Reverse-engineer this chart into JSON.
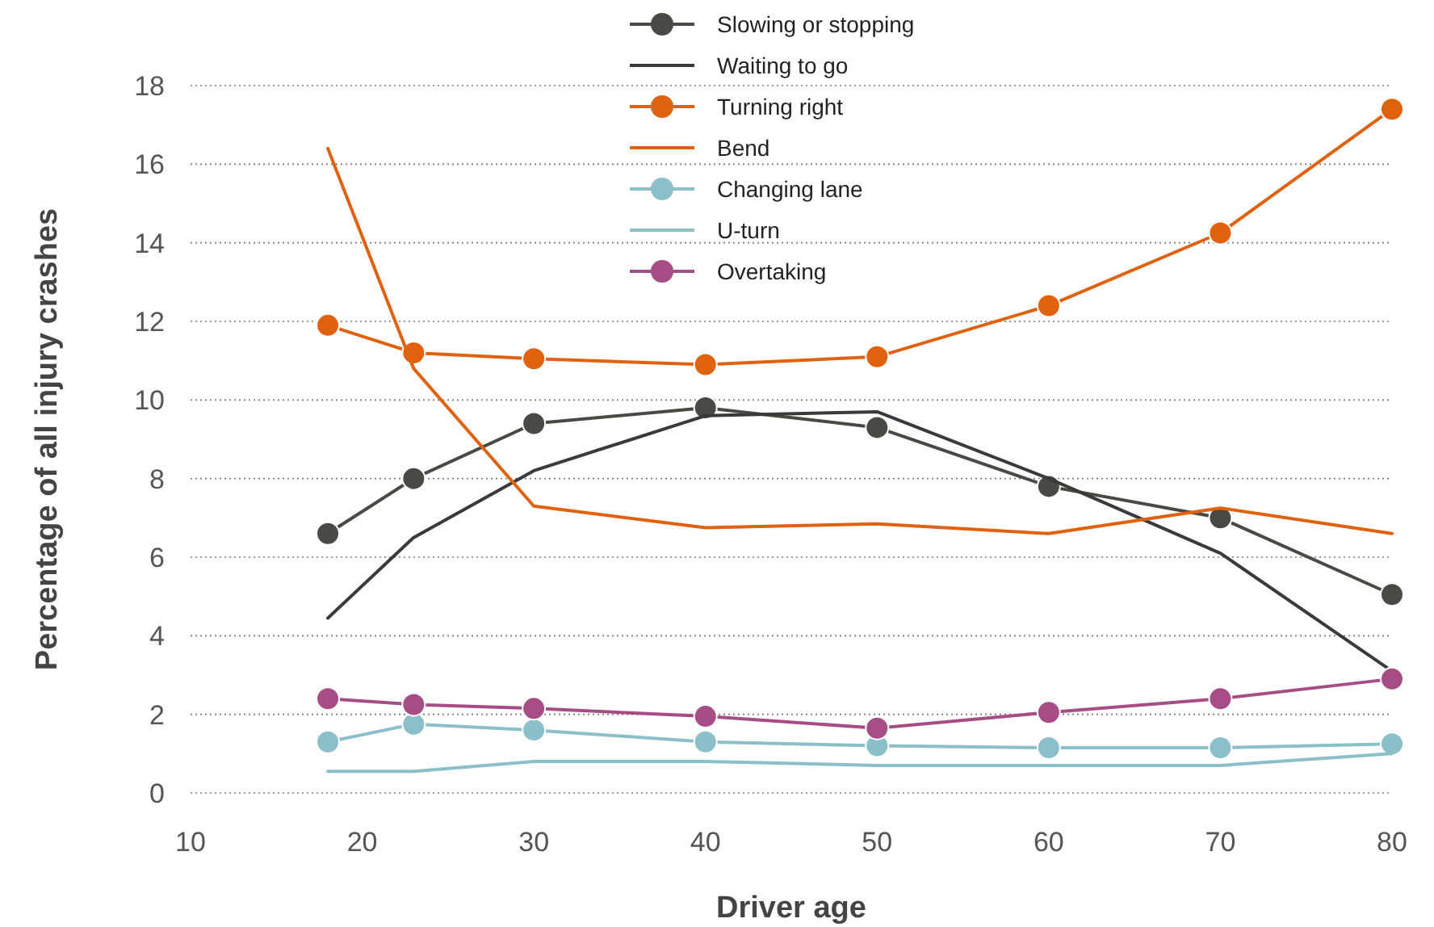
{
  "chart_data": {
    "type": "line",
    "xlabel": "Driver age",
    "ylabel": "Percentage of all injury crashes",
    "xlim": [
      10,
      80
    ],
    "xticks": [
      10,
      20,
      30,
      40,
      50,
      60,
      70,
      80
    ],
    "ylim": [
      0,
      18
    ],
    "yticks": [
      0,
      2,
      4,
      6,
      8,
      10,
      12,
      14,
      16,
      18
    ],
    "grid": "y",
    "legend": "top",
    "x": [
      18,
      23,
      30,
      40,
      50,
      60,
      70,
      80
    ],
    "series": [
      {
        "name": "Slowing or stopping",
        "color": "#4a4a44",
        "marker": "circle",
        "values": [
          6.6,
          8.0,
          9.4,
          9.8,
          9.3,
          7.8,
          7.0,
          5.05
        ]
      },
      {
        "name": "Waiting to go",
        "color": "#3a3a36",
        "marker": "none",
        "values": [
          4.45,
          6.5,
          8.2,
          9.6,
          9.7,
          8.0,
          6.1,
          3.1
        ]
      },
      {
        "name": "Turning right",
        "color": "#e0620f",
        "marker": "circle",
        "values": [
          11.9,
          11.2,
          11.05,
          10.9,
          11.1,
          12.4,
          14.25,
          17.4
        ]
      },
      {
        "name": "Bend",
        "color": "#e0620f",
        "marker": "none",
        "values": [
          16.4,
          10.8,
          7.3,
          6.75,
          6.85,
          6.6,
          7.25,
          6.6
        ]
      },
      {
        "name": "Changing lane",
        "color": "#8bbfc9",
        "marker": "circle",
        "values": [
          1.3,
          1.75,
          1.6,
          1.3,
          1.2,
          1.15,
          1.15,
          1.25
        ]
      },
      {
        "name": "U-turn",
        "color": "#8bbfc9",
        "marker": "none",
        "values": [
          0.55,
          0.55,
          0.8,
          0.8,
          0.7,
          0.7,
          0.7,
          1.0
        ]
      },
      {
        "name": "Overtaking",
        "color": "#a64d86",
        "marker": "circle",
        "values": [
          2.4,
          2.25,
          2.15,
          1.95,
          1.65,
          2.05,
          2.4,
          2.9
        ]
      }
    ]
  }
}
